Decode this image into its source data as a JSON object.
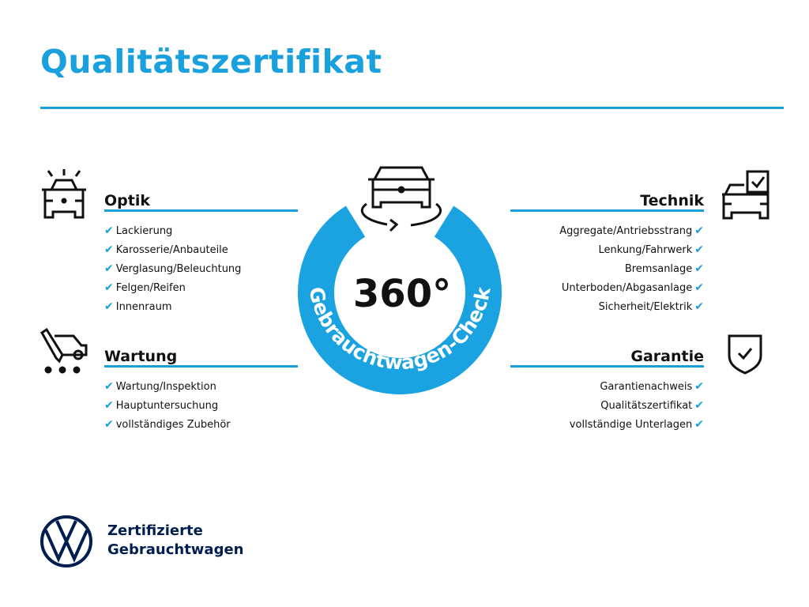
{
  "title": "Qualitätszertifikat",
  "center": {
    "number": "360°",
    "arc_text": "Gebrauchtwagen-Check"
  },
  "sections": {
    "optik": {
      "title": "Optik",
      "items": [
        "Lackierung",
        "Karosserie/Anbauteile",
        "Verglasung/Beleuchtung",
        "Felgen/Reifen",
        "Innenraum"
      ]
    },
    "wartung": {
      "title": "Wartung",
      "items": [
        "Wartung/Inspektion",
        "Hauptuntersuchung",
        "vollständiges Zubehör"
      ]
    },
    "technik": {
      "title": "Technik",
      "items": [
        "Aggregate/Antriebsstrang",
        "Lenkung/Fahrwerk",
        "Bremsanlage",
        "Unterboden/Abgasanlage",
        "Sicherheit/Elektrik"
      ]
    },
    "garantie": {
      "title": "Garantie",
      "items": [
        "Garantienachweis",
        "Qualitätszertifikat",
        "vollständige Unterlagen"
      ]
    }
  },
  "check_mark": "✔",
  "logo": {
    "line1": "Zertifizierte",
    "line2": "Gebrauchtwagen",
    "mark": "VW"
  },
  "colors": {
    "accent": "#1aa0dc",
    "navy": "#001e50"
  }
}
